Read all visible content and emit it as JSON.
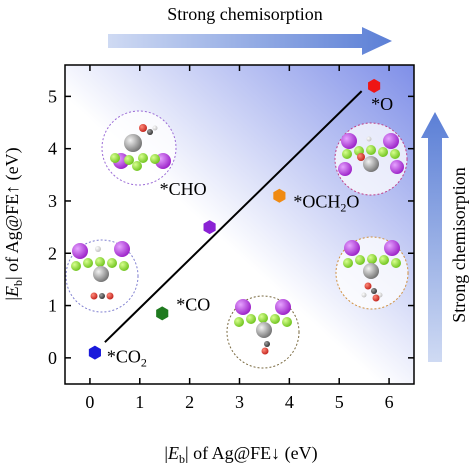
{
  "chart_data": {
    "type": "scatter",
    "xlabel_prefix": "|",
    "xlabel_italic": "E",
    "xlabel_sub": "b",
    "xlabel_suffix": "| of Ag@FE↓ (eV)",
    "ylabel_prefix": "|",
    "ylabel_italic": "E",
    "ylabel_sub": "b",
    "ylabel_suffix": "| of Ag@FE↑ (eV)",
    "xlim": [
      -0.5,
      6.5
    ],
    "ylim": [
      -0.5,
      5.6
    ],
    "xticks": [
      0,
      1,
      2,
      3,
      4,
      5,
      6
    ],
    "yticks": [
      0,
      1,
      2,
      3,
      4,
      5
    ],
    "grid": false,
    "points": [
      {
        "label": "*CO",
        "sub": "2",
        "x": 0.1,
        "y": 0.1,
        "color": "#1a1adb"
      },
      {
        "label": "*CO",
        "sub": "",
        "x": 1.45,
        "y": 0.85,
        "color": "#1f7a1f"
      },
      {
        "label": "*CHO",
        "sub": "",
        "x": 2.4,
        "y": 2.5,
        "color": "#8a22d4"
      },
      {
        "label": "*OCH",
        "sub": "2",
        "suffix": "O",
        "x": 3.8,
        "y": 3.1,
        "color": "#f08a12"
      },
      {
        "label": "*O",
        "sub": "",
        "x": 5.7,
        "y": 5.2,
        "color": "#ee1515"
      }
    ],
    "fit_line": {
      "x": [
        0.3,
        5.45
      ],
      "y": [
        0.3,
        5.1
      ]
    },
    "background_gradient": {
      "from": "#ffffff",
      "to": "#7f8fe8"
    }
  },
  "annotations": {
    "top_arrow_label": "Strong chemisorption",
    "right_arrow_label": "Strong chemisorption",
    "arrow_color": "#6f8edb"
  }
}
